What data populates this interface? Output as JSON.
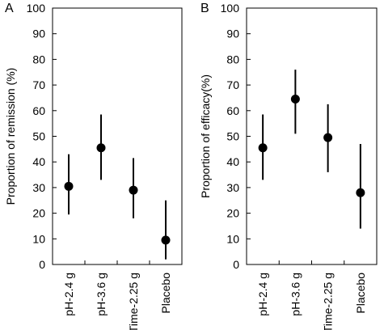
{
  "chart_data": [
    {
      "type": "scatter",
      "panel_label": "A",
      "ylabel": "Proportion of remission (%)",
      "xlabel": "",
      "ylim": [
        0,
        100
      ],
      "yticks": [
        "0",
        "10",
        "20",
        "30",
        "40",
        "50",
        "60",
        "70",
        "80",
        "90",
        "100"
      ],
      "categories": [
        "pH-2.4 g",
        "pH-3.6 g",
        "Time-2.25 g",
        "Placebo"
      ],
      "values": [
        30.5,
        45.5,
        29,
        9.5
      ],
      "error_low": [
        19.5,
        33,
        18,
        2
      ],
      "error_high": [
        43,
        58.5,
        41.5,
        25
      ],
      "grid": false,
      "legend": false
    },
    {
      "type": "scatter",
      "panel_label": "B",
      "ylabel": "Proportion of efficacy(%)",
      "xlabel": "",
      "ylim": [
        0,
        100
      ],
      "yticks": [
        "0",
        "10",
        "20",
        "30",
        "40",
        "50",
        "60",
        "70",
        "80",
        "90",
        "100"
      ],
      "categories": [
        "pH-2.4 g",
        "pH-3.6 g",
        "Time-2.25 g",
        "Placebo"
      ],
      "values": [
        45.5,
        64.5,
        49.5,
        28
      ],
      "error_low": [
        33,
        51,
        36,
        14
      ],
      "error_high": [
        58.5,
        76,
        62.5,
        47
      ],
      "grid": false,
      "legend": false
    }
  ]
}
